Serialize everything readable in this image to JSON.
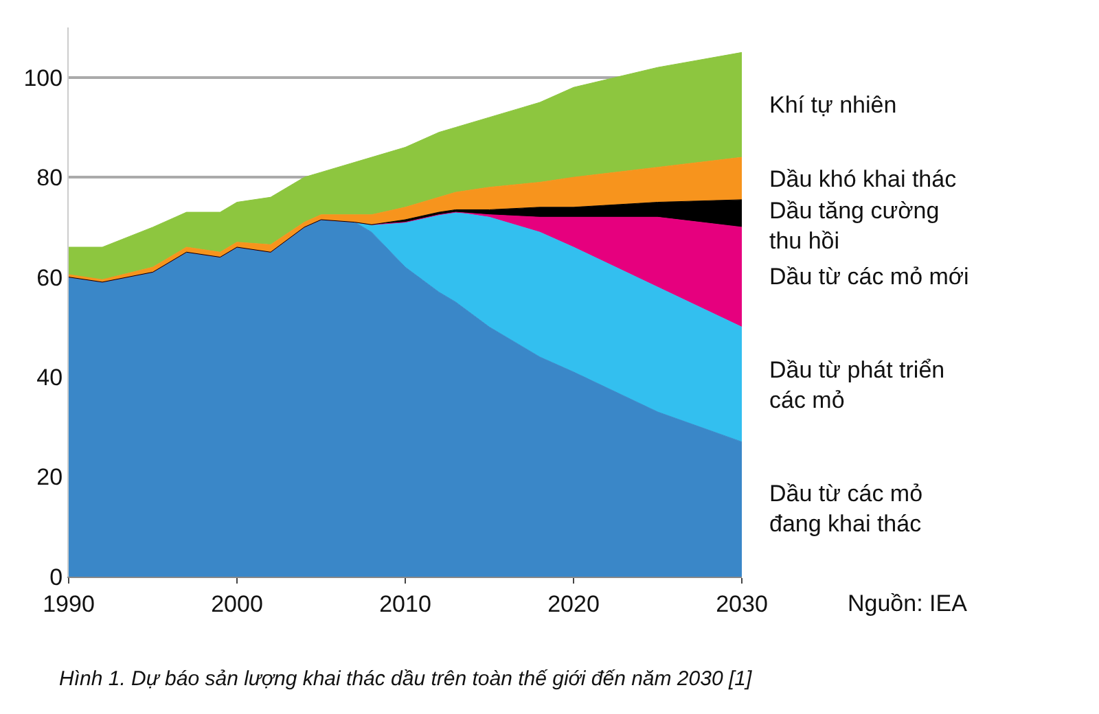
{
  "chart_data": {
    "type": "area",
    "stacked": true,
    "x": [
      1990,
      1992,
      1995,
      1997,
      1999,
      2000,
      2002,
      2004,
      2005,
      2007,
      2008,
      2010,
      2012,
      2013,
      2015,
      2018,
      2020,
      2025,
      2030
    ],
    "series": [
      {
        "name": "Dầu từ các mỏ đang khai thác",
        "color": "#3a87c8",
        "values": [
          60,
          59,
          61,
          65,
          64,
          66,
          65,
          70,
          71.5,
          71,
          69,
          62,
          57,
          55,
          50,
          44,
          41,
          33,
          27
        ]
      },
      {
        "name": "Dầu từ phát triển các mỏ",
        "color": "#33bfef",
        "values": [
          0,
          0,
          0,
          0,
          0,
          0,
          0,
          0,
          0,
          0,
          1.5,
          9,
          15.5,
          18,
          22,
          25,
          25,
          25,
          23
        ]
      },
      {
        "name": "Dầu từ các mỏ mới",
        "color": "#e6007e",
        "values": [
          0,
          0,
          0,
          0,
          0,
          0,
          0,
          0,
          0,
          0,
          0,
          0,
          0,
          0,
          0.5,
          3,
          6,
          14,
          20
        ]
      },
      {
        "name": "Dầu tăng cường thu hồi",
        "color": "#000000",
        "values": [
          0,
          0,
          0,
          0,
          0,
          0,
          0,
          0,
          0,
          0,
          0,
          0.5,
          0.5,
          0.5,
          1,
          2,
          2,
          3,
          5.5
        ]
      },
      {
        "name": "Dầu khó khai thác",
        "color": "#f7941d",
        "values": [
          0.5,
          0.5,
          1,
          1,
          1,
          1,
          1.5,
          1,
          1,
          1.5,
          2,
          2.5,
          3,
          3.5,
          4.5,
          5,
          6,
          7,
          8.5
        ]
      },
      {
        "name": "Khí tự nhiên",
        "color": "#8dc63f",
        "values": [
          5.5,
          6.5,
          8,
          7,
          8,
          8,
          9.5,
          9,
          8.5,
          10.5,
          11.5,
          12,
          13,
          13,
          14,
          16,
          18,
          20,
          21
        ]
      }
    ],
    "xlim": [
      1990,
      2030
    ],
    "xticks": [
      1990,
      2000,
      2010,
      2020,
      2030
    ],
    "ylim": [
      0,
      110
    ],
    "yticks": [
      0,
      20,
      40,
      60,
      80,
      100
    ],
    "grid": "y",
    "legend": "right",
    "annotations": [
      "Nguồn: IEA",
      "Hình 1. Dự báo sản lượng khai thác dầu trên toàn thế giới đến năm 2030 [1]"
    ]
  }
}
